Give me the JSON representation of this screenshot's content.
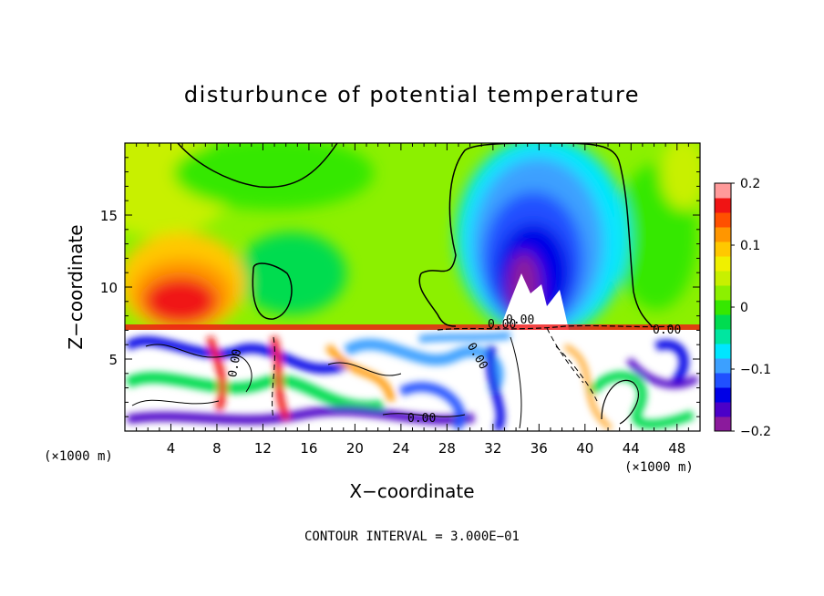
{
  "chart_data": {
    "type": "heatmap",
    "title": "disturbunce of potential temperature",
    "xlabel": "X−coordinate",
    "ylabel": "Z−coordinate",
    "x_unit_left": "(×1000 m)",
    "x_unit_right": "(×1000 m)",
    "footer": "CONTOUR INTERVAL = 3.000E−01",
    "xlim": [
      0,
      50
    ],
    "ylim": [
      0,
      20
    ],
    "x_ticks": [
      4,
      8,
      12,
      16,
      20,
      24,
      28,
      32,
      36,
      40,
      44,
      48
    ],
    "x_tick_labels": [
      "4",
      "8",
      "12",
      "16",
      "20",
      "24",
      "28",
      "32",
      "36",
      "40",
      "44",
      "48"
    ],
    "y_ticks": [
      5,
      10,
      15
    ],
    "y_tick_labels": [
      "5",
      "10",
      "15"
    ],
    "colorbar": {
      "range": [
        -0.2,
        0.2
      ],
      "tick_values": [
        0.2,
        0.1,
        0,
        -0.1,
        -0.2
      ],
      "tick_labels": [
        "0.2",
        "0.1",
        "0",
        "−0.1",
        "−0.2"
      ],
      "colors": [
        "#8b1a9c",
        "#4b00c8",
        "#0000e6",
        "#2050ff",
        "#3ca0ff",
        "#00e6ff",
        "#00e6a0",
        "#00dc50",
        "#36e800",
        "#8cf000",
        "#c8f000",
        "#f0f000",
        "#ffc800",
        "#ff9600",
        "#ff5000",
        "#f01414",
        "#ff9a9a"
      ]
    },
    "contour_labels": [
      "0.00",
      "0.00",
      "0.00",
      "0.00",
      "0.00",
      "0.00"
    ],
    "features": [
      {
        "kind": "warm",
        "x": 7,
        "z": 10.5,
        "value": 0.12
      },
      {
        "kind": "cold",
        "x": 34.5,
        "z": 13.5,
        "value": -0.19
      },
      {
        "kind": "inversion",
        "z": 7.3
      }
    ]
  }
}
